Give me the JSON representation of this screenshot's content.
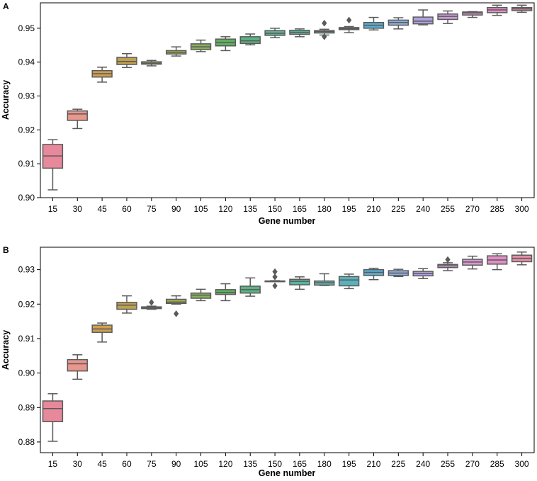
{
  "chart_data": [
    {
      "panel": "A",
      "type": "box",
      "xlabel": "Gene number",
      "ylabel": "Accuracy",
      "ylim": [
        0.9,
        0.9575
      ],
      "yticks": [
        0.9,
        0.91,
        0.92,
        0.93,
        0.94,
        0.95
      ],
      "ytick_labels": [
        "0.90",
        "0.91",
        "0.92",
        "0.93",
        "0.94",
        "0.95"
      ],
      "categories": [
        "15",
        "30",
        "45",
        "60",
        "75",
        "90",
        "105",
        "120",
        "135",
        "150",
        "165",
        "180",
        "195",
        "210",
        "225",
        "240",
        "255",
        "270",
        "285",
        "300"
      ],
      "boxes": [
        {
          "min": 0.9023,
          "q1": 0.9087,
          "median": 0.9123,
          "q3": 0.9157,
          "max": 0.9171,
          "fliers": []
        },
        {
          "min": 0.9204,
          "q1": 0.9228,
          "median": 0.9247,
          "q3": 0.9256,
          "max": 0.9261,
          "fliers": []
        },
        {
          "min": 0.9341,
          "q1": 0.9356,
          "median": 0.9366,
          "q3": 0.9375,
          "max": 0.9385,
          "fliers": []
        },
        {
          "min": 0.9384,
          "q1": 0.9393,
          "median": 0.9402,
          "q3": 0.9414,
          "max": 0.9425,
          "fliers": []
        },
        {
          "min": 0.9389,
          "q1": 0.9394,
          "median": 0.9397,
          "q3": 0.9401,
          "max": 0.9405,
          "fliers": []
        },
        {
          "min": 0.9418,
          "q1": 0.9424,
          "median": 0.9429,
          "q3": 0.9434,
          "max": 0.9445,
          "fliers": []
        },
        {
          "min": 0.9431,
          "q1": 0.9437,
          "median": 0.9445,
          "q3": 0.9454,
          "max": 0.9465,
          "fliers": []
        },
        {
          "min": 0.9434,
          "q1": 0.9448,
          "median": 0.9458,
          "q3": 0.9468,
          "max": 0.9475,
          "fliers": []
        },
        {
          "min": 0.9451,
          "q1": 0.9455,
          "median": 0.9463,
          "q3": 0.9475,
          "max": 0.9483,
          "fliers": []
        },
        {
          "min": 0.9472,
          "q1": 0.9479,
          "median": 0.9485,
          "q3": 0.9493,
          "max": 0.95,
          "fliers": []
        },
        {
          "min": 0.9475,
          "q1": 0.9482,
          "median": 0.9488,
          "q3": 0.9494,
          "max": 0.9498,
          "fliers": []
        },
        {
          "min": 0.948,
          "q1": 0.9486,
          "median": 0.949,
          "q3": 0.9493,
          "max": 0.9497,
          "fliers": [
            0.9515,
            0.9475
          ]
        },
        {
          "min": 0.9487,
          "q1": 0.9496,
          "median": 0.9499,
          "q3": 0.9502,
          "max": 0.9505,
          "fliers": [
            0.9524
          ]
        },
        {
          "min": 0.9495,
          "q1": 0.95,
          "median": 0.9509,
          "q3": 0.9517,
          "max": 0.9532,
          "fliers": []
        },
        {
          "min": 0.9498,
          "q1": 0.9509,
          "median": 0.9517,
          "q3": 0.9524,
          "max": 0.9531,
          "fliers": []
        },
        {
          "min": 0.951,
          "q1": 0.9513,
          "median": 0.9521,
          "q3": 0.9533,
          "max": 0.9554,
          "fliers": []
        },
        {
          "min": 0.9514,
          "q1": 0.9526,
          "median": 0.9535,
          "q3": 0.9542,
          "max": 0.9551,
          "fliers": []
        },
        {
          "min": 0.9532,
          "q1": 0.9539,
          "median": 0.9545,
          "q3": 0.9548,
          "max": 0.9549,
          "fliers": []
        },
        {
          "min": 0.9538,
          "q1": 0.9546,
          "median": 0.9554,
          "q3": 0.9561,
          "max": 0.9568,
          "fliers": []
        },
        {
          "min": 0.9547,
          "q1": 0.9552,
          "median": 0.9557,
          "q3": 0.9561,
          "max": 0.9568,
          "fliers": []
        }
      ]
    },
    {
      "panel": "B",
      "type": "box",
      "xlabel": "Gene number",
      "ylabel": "Accuracy",
      "ylim": [
        0.8769,
        0.9365
      ],
      "yticks": [
        0.88,
        0.89,
        0.9,
        0.91,
        0.92,
        0.93
      ],
      "ytick_labels": [
        "0.88",
        "0.89",
        "0.90",
        "0.91",
        "0.92",
        "0.93"
      ],
      "categories": [
        "15",
        "30",
        "45",
        "60",
        "75",
        "90",
        "105",
        "120",
        "135",
        "150",
        "165",
        "180",
        "195",
        "210",
        "225",
        "240",
        "255",
        "270",
        "285",
        "300"
      ],
      "boxes": [
        {
          "min": 0.8802,
          "q1": 0.8859,
          "median": 0.8897,
          "q3": 0.8919,
          "max": 0.894,
          "fliers": []
        },
        {
          "min": 0.8982,
          "q1": 0.9006,
          "median": 0.9027,
          "q3": 0.9039,
          "max": 0.9053,
          "fliers": []
        },
        {
          "min": 0.909,
          "q1": 0.9118,
          "median": 0.9128,
          "q3": 0.9139,
          "max": 0.9145,
          "fliers": []
        },
        {
          "min": 0.9174,
          "q1": 0.9185,
          "median": 0.9197,
          "q3": 0.9205,
          "max": 0.9224,
          "fliers": []
        },
        {
          "min": 0.9185,
          "q1": 0.9187,
          "median": 0.9189,
          "q3": 0.9192,
          "max": 0.9194,
          "fliers": [
            0.9205
          ]
        },
        {
          "min": 0.92,
          "q1": 0.9202,
          "median": 0.9206,
          "q3": 0.9214,
          "max": 0.9224,
          "fliers": [
            0.9172
          ]
        },
        {
          "min": 0.921,
          "q1": 0.9217,
          "median": 0.9226,
          "q3": 0.9232,
          "max": 0.9243,
          "fliers": []
        },
        {
          "min": 0.921,
          "q1": 0.9228,
          "median": 0.9234,
          "q3": 0.9242,
          "max": 0.9259,
          "fliers": []
        },
        {
          "min": 0.9223,
          "q1": 0.9232,
          "median": 0.9242,
          "q3": 0.9252,
          "max": 0.9276,
          "fliers": []
        },
        {
          "min": 0.9266,
          "q1": 0.9266,
          "median": 0.9267,
          "q3": 0.9267,
          "max": 0.9268,
          "fliers": [
            0.9294,
            0.9279,
            0.9253
          ]
        },
        {
          "min": 0.9243,
          "q1": 0.9256,
          "median": 0.9266,
          "q3": 0.9272,
          "max": 0.9279,
          "fliers": []
        },
        {
          "min": 0.9254,
          "q1": 0.9255,
          "median": 0.9262,
          "q3": 0.9267,
          "max": 0.9288,
          "fliers": []
        },
        {
          "min": 0.9245,
          "q1": 0.9253,
          "median": 0.927,
          "q3": 0.928,
          "max": 0.9287,
          "fliers": []
        },
        {
          "min": 0.9271,
          "q1": 0.9283,
          "median": 0.9292,
          "q3": 0.93,
          "max": 0.9304,
          "fliers": []
        },
        {
          "min": 0.928,
          "q1": 0.9283,
          "median": 0.929,
          "q3": 0.9297,
          "max": 0.9301,
          "fliers": []
        },
        {
          "min": 0.9274,
          "q1": 0.9282,
          "median": 0.9289,
          "q3": 0.9295,
          "max": 0.9303,
          "fliers": []
        },
        {
          "min": 0.9297,
          "q1": 0.9306,
          "median": 0.9311,
          "q3": 0.9315,
          "max": 0.932,
          "fliers": [
            0.9329
          ]
        },
        {
          "min": 0.9302,
          "q1": 0.9313,
          "median": 0.9322,
          "q3": 0.933,
          "max": 0.9339,
          "fliers": []
        },
        {
          "min": 0.93,
          "q1": 0.9316,
          "median": 0.9328,
          "q3": 0.934,
          "max": 0.9346,
          "fliers": []
        },
        {
          "min": 0.9314,
          "q1": 0.9323,
          "median": 0.9333,
          "q3": 0.9342,
          "max": 0.9351,
          "fliers": []
        }
      ]
    }
  ],
  "palette": [
    "#e8889b",
    "#e9968c",
    "#cf9f4f",
    "#bfa04f",
    "#a8a64f",
    "#a5ad4f",
    "#86b05b",
    "#5fb05f",
    "#5ab383",
    "#5bb393",
    "#5cb29f",
    "#5eb1ac",
    "#5ab1bc",
    "#5aaed0",
    "#8caee0",
    "#b0a2e0",
    "#cc9ad8",
    "#d897d0",
    "#e28fc7",
    "#e48fa8"
  ]
}
